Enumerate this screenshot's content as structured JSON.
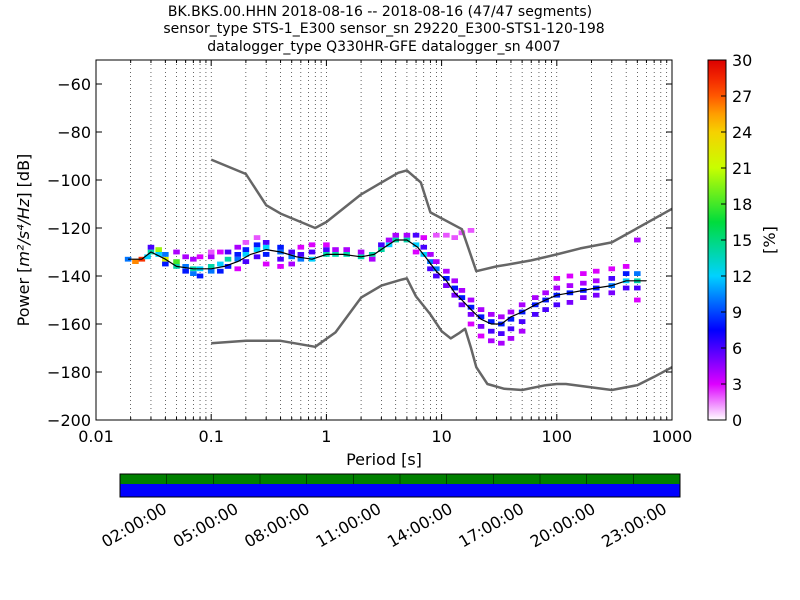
{
  "chart_data": {
    "type": "heatmap",
    "title_lines": [
      "BK.BKS.00.HHN   2018-08-16 -- 2018-08-16  (47/47 segments)",
      "sensor_type STS-1_E300 sensor_sn 29220_E300-STS1-120-198",
      "datalogger_type Q330HR-GFE datalogger_sn 4007"
    ],
    "xlabel": "Period [s]",
    "ylabel_prefix": "Power [",
    "ylabel_math": "m²/s⁴/Hz",
    "ylabel_suffix": "] [dB]",
    "xscale": "log",
    "xlim": [
      0.01,
      1000
    ],
    "ylim": [
      -200,
      -50
    ],
    "xticks": [
      {
        "value": 0.01,
        "label": "0.01"
      },
      {
        "value": 0.1,
        "label": "0.1"
      },
      {
        "value": 1,
        "label": "1"
      },
      {
        "value": 10,
        "label": "10"
      },
      {
        "value": 100,
        "label": "100"
      },
      {
        "value": 1000,
        "label": "1000"
      }
    ],
    "yticks": [
      {
        "value": -60,
        "label": "−60"
      },
      {
        "value": -80,
        "label": "−80"
      },
      {
        "value": -100,
        "label": "−100"
      },
      {
        "value": -120,
        "label": "−120"
      },
      {
        "value": -140,
        "label": "−140"
      },
      {
        "value": -160,
        "label": "−160"
      },
      {
        "value": -180,
        "label": "−180"
      },
      {
        "value": -200,
        "label": "−200"
      }
    ],
    "grid": "vertical-dotted",
    "colorbar": {
      "label": "[%]",
      "range": [
        0,
        30
      ],
      "ticks": [
        {
          "value": 0,
          "label": "0"
        },
        {
          "value": 3,
          "label": "3"
        },
        {
          "value": 6,
          "label": "6"
        },
        {
          "value": 9,
          "label": "9"
        },
        {
          "value": 12,
          "label": "12"
        },
        {
          "value": 15,
          "label": "15"
        },
        {
          "value": 18,
          "label": "18"
        },
        {
          "value": 21,
          "label": "21"
        },
        {
          "value": 24,
          "label": "24"
        },
        {
          "value": 27,
          "label": "27"
        },
        {
          "value": 30,
          "label": "30"
        }
      ]
    },
    "series": [
      {
        "period": [
          0.019,
          0.025,
          0.03,
          0.04,
          0.05,
          0.07,
          0.1,
          0.13,
          0.17,
          0.22,
          0.3,
          0.4,
          0.55,
          0.75,
          1.0,
          1.4,
          2.0,
          2.6,
          3.2,
          4.0,
          5.0,
          6.2,
          7.5,
          9.0,
          11,
          13,
          15,
          18,
          22,
          27,
          33,
          40,
          50,
          65,
          80,
          100,
          130,
          170,
          220,
          300,
          400,
          600
        ],
        "power": [
          -133,
          -133,
          -130,
          -133,
          -136,
          -137,
          -137,
          -136,
          -134,
          -131,
          -129,
          -130,
          -132,
          -133,
          -131,
          -131,
          -132,
          -131,
          -128,
          -125,
          -125,
          -128,
          -133,
          -138,
          -142,
          -147,
          -150,
          -154,
          -158,
          -160,
          -160,
          -157,
          -155,
          -152,
          -150,
          -148,
          -147,
          -146,
          -145,
          -144,
          -142,
          -142
        ]
      },
      {
        "period": [
          0.1,
          0.2,
          0.3,
          0.4,
          0.8,
          1,
          2,
          4.2,
          5,
          6.6,
          8,
          15,
          20,
          30,
          40,
          60,
          100,
          160,
          300,
          1000
        ],
        "power": [
          -91.5,
          -97.5,
          -110.5,
          -114,
          -120,
          -117.5,
          -106,
          -97,
          -96,
          -101,
          -113.5,
          -120.5,
          -138,
          -136,
          -135,
          -133.5,
          -131,
          -128.5,
          -126,
          -112
        ]
      },
      {
        "period": [
          0.1,
          0.2,
          0.4,
          0.8,
          1.2,
          2,
          3,
          4.5,
          5,
          6,
          8,
          10,
          12,
          14,
          16,
          18,
          20,
          25,
          35,
          50,
          80,
          100,
          120,
          300,
          500,
          700,
          1000
        ],
        "power": [
          -168,
          -167,
          -167,
          -169.5,
          -163.5,
          -149,
          -144,
          -141.5,
          -141,
          -148.5,
          -156,
          -163,
          -166,
          -164,
          -162,
          -170,
          -178,
          -185,
          -187,
          -187.5,
          -185.5,
          -185,
          -185,
          -187.5,
          -185.5,
          -182,
          -178
        ]
      }
    ],
    "density_cells": [
      [
        0.019,
        -133,
        10
      ],
      [
        0.022,
        -134,
        26
      ],
      [
        0.025,
        -133,
        28
      ],
      [
        0.028,
        -132,
        12
      ],
      [
        0.03,
        -130,
        14
      ],
      [
        0.03,
        -128,
        6
      ],
      [
        0.035,
        -131,
        12
      ],
      [
        0.035,
        -129,
        20
      ],
      [
        0.04,
        -133,
        22
      ],
      [
        0.04,
        -131,
        10
      ],
      [
        0.04,
        -135,
        8
      ],
      [
        0.05,
        -134,
        18
      ],
      [
        0.05,
        -136,
        14
      ],
      [
        0.05,
        -130,
        4
      ],
      [
        0.06,
        -136,
        10
      ],
      [
        0.06,
        -138,
        8
      ],
      [
        0.06,
        -132,
        4
      ],
      [
        0.07,
        -137,
        14
      ],
      [
        0.07,
        -139,
        10
      ],
      [
        0.07,
        -133,
        4
      ],
      [
        0.08,
        -137,
        12
      ],
      [
        0.08,
        -140,
        8
      ],
      [
        0.08,
        -132,
        3
      ],
      [
        0.1,
        -136,
        14
      ],
      [
        0.1,
        -138,
        10
      ],
      [
        0.1,
        -132,
        4
      ],
      [
        0.1,
        -130,
        2
      ],
      [
        0.12,
        -135,
        12
      ],
      [
        0.12,
        -138,
        8
      ],
      [
        0.12,
        -130,
        3
      ],
      [
        0.14,
        -133,
        14
      ],
      [
        0.14,
        -130,
        6
      ],
      [
        0.14,
        -136,
        8
      ],
      [
        0.17,
        -133,
        10
      ],
      [
        0.17,
        -131,
        8
      ],
      [
        0.17,
        -128,
        4
      ],
      [
        0.17,
        -137,
        3
      ],
      [
        0.2,
        -131,
        12
      ],
      [
        0.2,
        -129,
        8
      ],
      [
        0.2,
        -134,
        6
      ],
      [
        0.2,
        -126,
        2
      ],
      [
        0.25,
        -129,
        12
      ],
      [
        0.25,
        -127,
        8
      ],
      [
        0.25,
        -132,
        6
      ],
      [
        0.25,
        -124,
        2
      ],
      [
        0.3,
        -128,
        12
      ],
      [
        0.3,
        -126,
        6
      ],
      [
        0.3,
        -131,
        8
      ],
      [
        0.3,
        -135,
        3
      ],
      [
        0.4,
        -130,
        10
      ],
      [
        0.4,
        -128,
        8
      ],
      [
        0.4,
        -133,
        6
      ],
      [
        0.4,
        -136,
        3
      ],
      [
        0.5,
        -132,
        10
      ],
      [
        0.5,
        -130,
        6
      ],
      [
        0.5,
        -135,
        4
      ],
      [
        0.6,
        -133,
        10
      ],
      [
        0.6,
        -131,
        6
      ],
      [
        0.6,
        -128,
        3
      ],
      [
        0.75,
        -133,
        12
      ],
      [
        0.75,
        -130,
        6
      ],
      [
        0.75,
        -127,
        3
      ],
      [
        1.0,
        -131,
        14
      ],
      [
        1.0,
        -129,
        6
      ],
      [
        1.0,
        -127,
        3
      ],
      [
        1.2,
        -131,
        14
      ],
      [
        1.2,
        -129,
        4
      ],
      [
        1.5,
        -131,
        14
      ],
      [
        1.5,
        -129,
        4
      ],
      [
        2.0,
        -132,
        14
      ],
      [
        2.0,
        -130,
        4
      ],
      [
        2.5,
        -131,
        14
      ],
      [
        2.5,
        -133,
        4
      ],
      [
        3.0,
        -129,
        14
      ],
      [
        3.0,
        -127,
        6
      ],
      [
        3.5,
        -127,
        12
      ],
      [
        3.5,
        -125,
        4
      ],
      [
        4.0,
        -125,
        14
      ],
      [
        4.0,
        -123,
        4
      ],
      [
        5.0,
        -125,
        14
      ],
      [
        5.0,
        -123,
        4
      ],
      [
        6.0,
        -127,
        12
      ],
      [
        6.0,
        -123,
        6
      ],
      [
        6.0,
        -130,
        3
      ],
      [
        7.0,
        -131,
        12
      ],
      [
        7.0,
        -128,
        6
      ],
      [
        7.0,
        -124,
        3
      ],
      [
        8.0,
        -134,
        10
      ],
      [
        8.0,
        -131,
        4
      ],
      [
        8.0,
        -137,
        6
      ],
      [
        9.0,
        -137,
        10
      ],
      [
        9.0,
        -134,
        4
      ],
      [
        9.0,
        -140,
        6
      ],
      [
        9.0,
        -123,
        2
      ],
      [
        11,
        -141,
        8
      ],
      [
        11,
        -138,
        4
      ],
      [
        11,
        -144,
        5
      ],
      [
        11,
        -123,
        2
      ],
      [
        13,
        -145,
        8
      ],
      [
        13,
        -142,
        4
      ],
      [
        13,
        -148,
        5
      ],
      [
        13,
        -124,
        2
      ],
      [
        15,
        -149,
        8
      ],
      [
        15,
        -146,
        4
      ],
      [
        15,
        -152,
        5
      ],
      [
        15,
        -122,
        2
      ],
      [
        18,
        -153,
        8
      ],
      [
        18,
        -150,
        4
      ],
      [
        18,
        -156,
        5
      ],
      [
        18,
        -160,
        3
      ],
      [
        18,
        -121,
        2
      ],
      [
        22,
        -157,
        8
      ],
      [
        22,
        -154,
        4
      ],
      [
        22,
        -161,
        5
      ],
      [
        22,
        -165,
        3
      ],
      [
        27,
        -159,
        8
      ],
      [
        27,
        -156,
        4
      ],
      [
        27,
        -163,
        6
      ],
      [
        27,
        -167,
        4
      ],
      [
        33,
        -160,
        8
      ],
      [
        33,
        -157,
        4
      ],
      [
        33,
        -164,
        6
      ],
      [
        33,
        -168,
        4
      ],
      [
        40,
        -158,
        8
      ],
      [
        40,
        -155,
        4
      ],
      [
        40,
        -162,
        6
      ],
      [
        40,
        -166,
        4
      ],
      [
        50,
        -155,
        8
      ],
      [
        50,
        -152,
        4
      ],
      [
        50,
        -159,
        6
      ],
      [
        50,
        -163,
        4
      ],
      [
        65,
        -152,
        8
      ],
      [
        65,
        -149,
        4
      ],
      [
        65,
        -156,
        6
      ],
      [
        80,
        -150,
        8
      ],
      [
        80,
        -147,
        4
      ],
      [
        80,
        -154,
        6
      ],
      [
        100,
        -148,
        8
      ],
      [
        100,
        -145,
        4
      ],
      [
        100,
        -152,
        6
      ],
      [
        100,
        -141,
        3
      ],
      [
        130,
        -147,
        8
      ],
      [
        130,
        -144,
        4
      ],
      [
        130,
        -151,
        5
      ],
      [
        130,
        -140,
        3
      ],
      [
        170,
        -146,
        8
      ],
      [
        170,
        -143,
        4
      ],
      [
        170,
        -149,
        5
      ],
      [
        170,
        -139,
        3
      ],
      [
        220,
        -145,
        8
      ],
      [
        220,
        -142,
        4
      ],
      [
        220,
        -148,
        5
      ],
      [
        220,
        -138,
        3
      ],
      [
        300,
        -144,
        10
      ],
      [
        300,
        -141,
        6
      ],
      [
        300,
        -147,
        5
      ],
      [
        300,
        -137,
        3
      ],
      [
        400,
        -142,
        12
      ],
      [
        400,
        -139,
        8
      ],
      [
        400,
        -145,
        6
      ],
      [
        400,
        -136,
        3
      ],
      [
        500,
        -142,
        14
      ],
      [
        500,
        -139,
        10
      ],
      [
        500,
        -145,
        6
      ],
      [
        500,
        -150,
        3
      ],
      [
        500,
        -125,
        4
      ]
    ]
  },
  "timeline": {
    "ticks": [
      "02:00:00",
      "05:00:00",
      "08:00:00",
      "11:00:00",
      "14:00:00",
      "17:00:00",
      "20:00:00",
      "23:00:00"
    ],
    "top_color": "#008000",
    "bottom_color": "#0000ff"
  }
}
